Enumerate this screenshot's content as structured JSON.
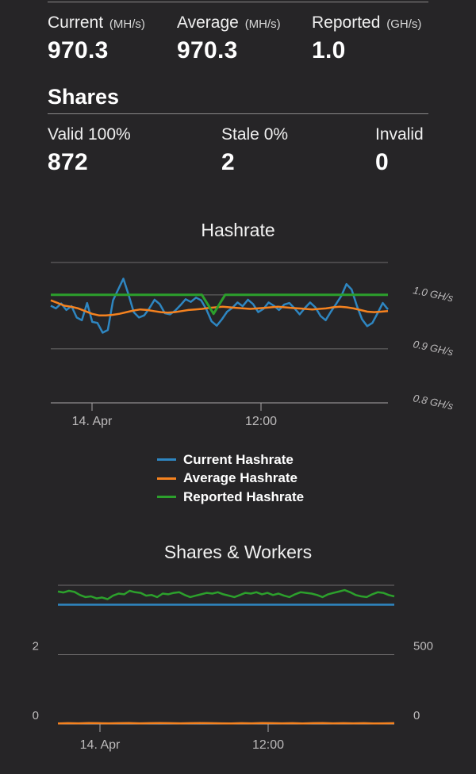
{
  "hashrate_stats": [
    {
      "label": "Current",
      "unit": "(MH/s)",
      "value": "970.3"
    },
    {
      "label": "Average",
      "unit": "(MH/s)",
      "value": "970.3"
    },
    {
      "label": "Reported",
      "unit": "(GH/s)",
      "value": "1.0"
    }
  ],
  "shares": {
    "title": "Shares",
    "valid": {
      "label": "Valid 100%",
      "value": "872"
    },
    "stale": {
      "label": "Stale 0%",
      "value": "2"
    },
    "invalid": {
      "label": "Invalid",
      "value": "0"
    }
  },
  "chart_data": [
    {
      "type": "line",
      "title": "Hashrate",
      "x_ticks": [
        "14. Apr",
        "12:00"
      ],
      "y_ticks": [
        "1.0 GH/s",
        "0.9 GH/s",
        "0.8 GH/s"
      ],
      "y_range": [
        0.8,
        1.06
      ],
      "legend_position": "bottom",
      "series": [
        {
          "name": "Current Hashrate",
          "color": "#2e86c1",
          "values": [
            0.98,
            0.975,
            0.984,
            0.972,
            0.979,
            0.958,
            0.953,
            0.985,
            0.95,
            0.948,
            0.93,
            0.935,
            0.99,
            1.01,
            1.03,
            1.0,
            0.968,
            0.958,
            0.962,
            0.975,
            0.991,
            0.983,
            0.966,
            0.964,
            0.971,
            0.981,
            0.992,
            0.987,
            0.995,
            0.99,
            0.973,
            0.951,
            0.943,
            0.955,
            0.969,
            0.976,
            0.986,
            0.979,
            0.991,
            0.983,
            0.968,
            0.974,
            0.986,
            0.98,
            0.972,
            0.982,
            0.985,
            0.975,
            0.964,
            0.976,
            0.986,
            0.977,
            0.961,
            0.953,
            0.969,
            0.983,
            0.998,
            1.02,
            1.01,
            0.98,
            0.955,
            0.942,
            0.948,
            0.966,
            0.985,
            0.973
          ]
        },
        {
          "name": "Average Hashrate",
          "color": "#f5821f",
          "values": [
            0.99,
            0.985,
            0.98,
            0.978,
            0.975,
            0.97,
            0.965,
            0.962,
            0.962,
            0.963,
            0.965,
            0.968,
            0.971,
            0.973,
            0.972,
            0.97,
            0.968,
            0.967,
            0.968,
            0.97,
            0.972,
            0.973,
            0.974,
            0.976,
            0.977,
            0.978,
            0.977,
            0.976,
            0.975,
            0.974,
            0.975,
            0.976,
            0.977,
            0.978,
            0.977,
            0.976,
            0.975,
            0.974,
            0.973,
            0.974,
            0.975,
            0.977,
            0.978,
            0.977,
            0.975,
            0.972,
            0.969,
            0.968,
            0.969,
            0.97
          ]
        },
        {
          "name": "Reported Hashrate",
          "color": "#2ca02c",
          "values": [
            1.0,
            1.0,
            1.0,
            1.0,
            1.0,
            1.0,
            1.0,
            1.0,
            1.0,
            1.0,
            1.0,
            1.0,
            1.0,
            1.0,
            0.965,
            1.0,
            1.0,
            1.0,
            1.0,
            1.0,
            1.0,
            1.0,
            1.0,
            1.0,
            1.0,
            1.0,
            1.0,
            1.0,
            1.0,
            1.0
          ]
        }
      ]
    },
    {
      "type": "line",
      "title": "Shares & Workers",
      "x_ticks": [
        "14. Apr",
        "12:00"
      ],
      "y_left_ticks": [
        "2",
        "0"
      ],
      "y_right_ticks": [
        "500",
        "0"
      ],
      "series": [
        {
          "color": "#2ca02c",
          "values": [
            955,
            948,
            960,
            952,
            930,
            915,
            920,
            905,
            912,
            900,
            925,
            940,
            935,
            960,
            950,
            945,
            925,
            930,
            915,
            940,
            935,
            945,
            950,
            930,
            915,
            925,
            935,
            945,
            940,
            950,
            935,
            925,
            915,
            930,
            945,
            940,
            950,
            935,
            945,
            930,
            940,
            925,
            915,
            935,
            950,
            945,
            940,
            930,
            915,
            935,
            945,
            955,
            965,
            950,
            930,
            920,
            915,
            935,
            950,
            945,
            930,
            920
          ]
        },
        {
          "color": "#2e86c1",
          "values": [
            860,
            860
          ]
        },
        {
          "color": "#f5821f",
          "values": [
            4,
            6,
            5,
            7,
            6,
            5,
            6,
            7,
            5,
            6,
            7,
            6,
            5,
            6,
            7,
            6,
            5,
            4,
            6,
            5,
            7,
            6,
            5,
            6,
            4,
            6,
            7,
            5,
            6,
            5,
            6,
            4,
            5,
            6
          ]
        }
      ]
    }
  ]
}
